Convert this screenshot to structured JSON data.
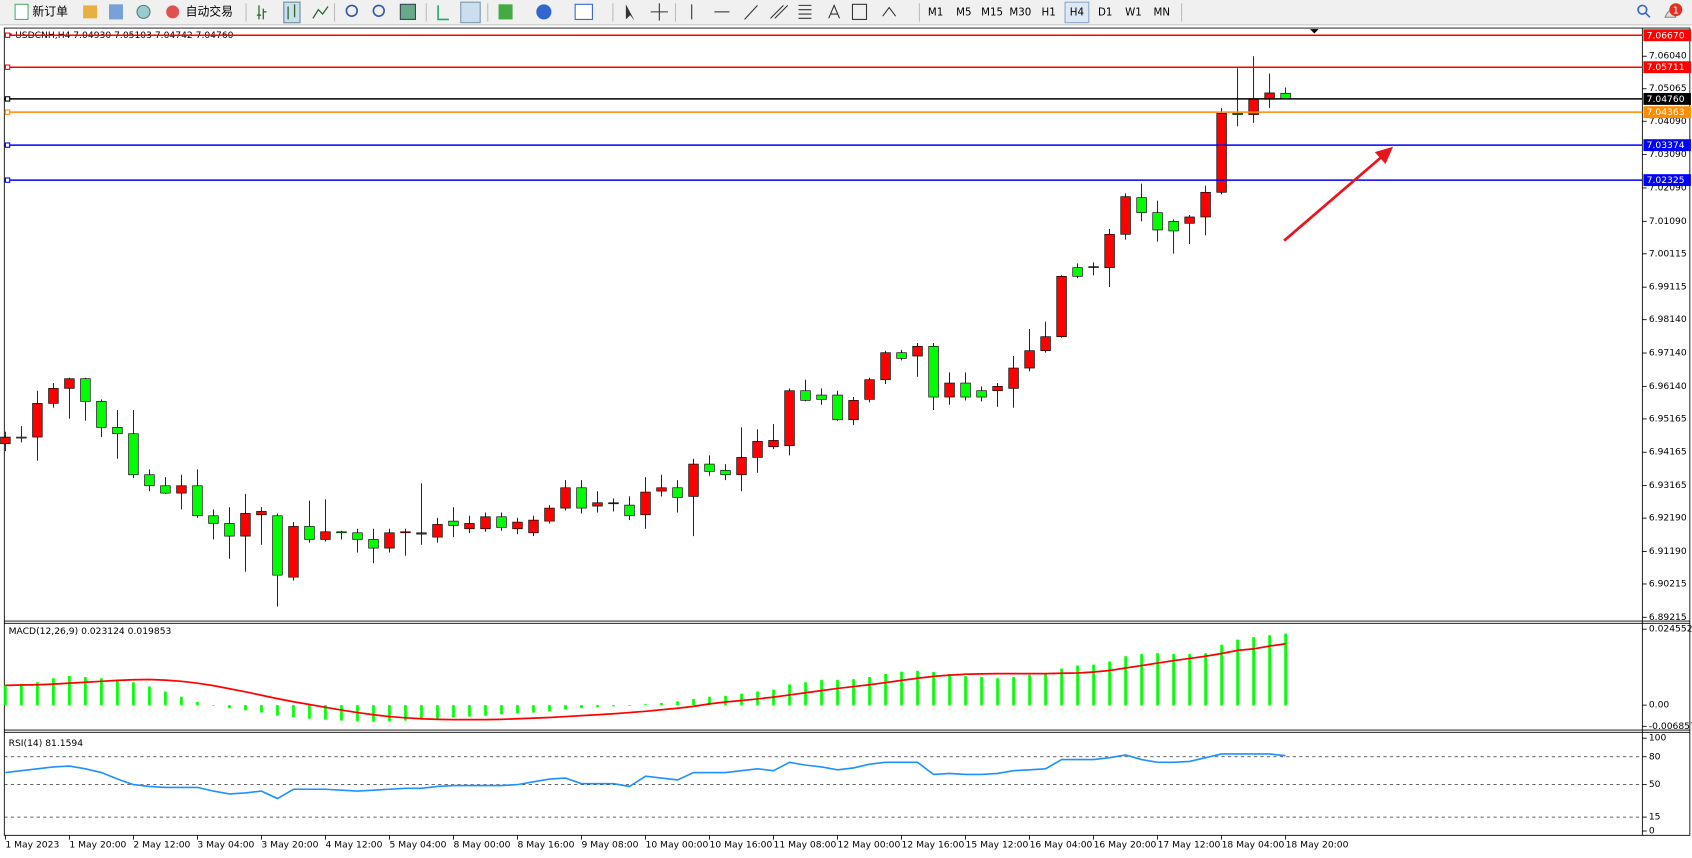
{
  "toolbar": {
    "new_order": "新订单",
    "auto_trading": "自动交易",
    "timeframes": [
      "M1",
      "M5",
      "M15",
      "M30",
      "H1",
      "H4",
      "D1",
      "W1",
      "MN"
    ],
    "active_timeframe": "H4",
    "notification_count": 1
  },
  "chart_data": [
    {
      "type": "candlestick",
      "title": "USDCNH,H4  7.04930 7.05103 7.04742 7.04760",
      "categories": [
        "1 May 2023",
        null,
        null,
        null,
        "1 May 20:00",
        null,
        null,
        null,
        "2 May 12:00",
        null,
        null,
        null,
        "3 May 04:00",
        null,
        null,
        null,
        "3 May 20:00",
        null,
        null,
        null,
        "4 May 12:00",
        null,
        null,
        null,
        "5 May 04:00",
        null,
        null,
        null,
        "8 May 00:00",
        null,
        null,
        null,
        "8 May 16:00",
        null,
        null,
        null,
        "9 May 08:00",
        null,
        null,
        null,
        "10 May 00:00",
        null,
        null,
        null,
        "10 May 16:00",
        null,
        null,
        null,
        "11 May 08:00",
        null,
        null,
        null,
        "12 May 00:00",
        null,
        null,
        null,
        "12 May 16:00",
        null,
        null,
        null,
        "15 May 12:00",
        null,
        null,
        null,
        "16 May 04:00",
        null,
        null,
        null,
        "16 May 20:00",
        null,
        null,
        null,
        "17 May 12:00",
        null,
        null,
        null,
        "18 May 04:00",
        null,
        null,
        null,
        "18 May 20:00"
      ],
      "open": [
        6.9442,
        6.9462,
        6.9462,
        6.9563,
        6.9608,
        6.9637,
        6.9569,
        6.9491,
        6.9472,
        6.9349,
        6.9316,
        6.9294,
        6.9316,
        6.9226,
        6.9203,
        6.9165,
        6.9229,
        6.9226,
        6.9042,
        6.9194,
        6.9155,
        6.9178,
        6.9175,
        6.9155,
        6.9129,
        6.9175,
        6.9171,
        6.9162,
        6.921,
        6.9187,
        6.9187,
        6.9223,
        6.9187,
        6.9175,
        6.921,
        6.9249,
        6.931,
        6.9255,
        6.9262,
        6.9258,
        6.9229,
        6.93,
        6.931,
        6.9284,
        6.9381,
        6.9362,
        6.9349,
        6.9401,
        6.9433,
        6.9436,
        6.9601,
        6.9588,
        6.9588,
        6.9514,
        6.9575,
        6.9634,
        6.9715,
        6.9705,
        6.9734,
        6.9582,
        6.9624,
        6.9601,
        6.9601,
        6.9608,
        6.9669,
        6.9721,
        6.9763,
        6.997,
        6.9973,
        6.997,
        7.007,
        7.018,
        7.0135,
        7.0109,
        7.0103,
        7.0122,
        7.0196,
        7.0433,
        7.0429,
        7.0475,
        7.0493
      ],
      "high": [
        6.9478,
        6.9495,
        6.9601,
        6.9624,
        6.964,
        6.964,
        6.9575,
        6.9543,
        6.9543,
        6.9365,
        6.9342,
        6.9349,
        6.9365,
        6.9245,
        6.9252,
        6.9291,
        6.9252,
        6.9233,
        6.9207,
        6.9271,
        6.9275,
        6.9181,
        6.9187,
        6.9187,
        6.9187,
        6.9187,
        6.9323,
        6.922,
        6.9252,
        6.9226,
        6.9236,
        6.9236,
        6.922,
        6.9226,
        6.9258,
        6.9333,
        6.9333,
        6.93,
        6.9278,
        6.9284,
        6.9342,
        6.9349,
        6.9333,
        6.9397,
        6.9407,
        6.9381,
        6.9491,
        6.9485,
        6.9501,
        6.9608,
        6.9634,
        6.9608,
        6.9601,
        6.9582,
        6.964,
        6.9721,
        6.9724,
        6.9744,
        6.9744,
        6.9656,
        6.9656,
        6.9614,
        6.9624,
        6.9705,
        6.9786,
        6.9808,
        6.9947,
        6.9983,
        6.9986,
        7.0086,
        7.0193,
        7.0222,
        7.0171,
        7.0115,
        7.0128,
        7.0216,
        7.0449,
        7.0568,
        7.0604,
        7.0552,
        7.05103
      ],
      "low": [
        6.942,
        6.9446,
        6.9391,
        6.955,
        6.9517,
        6.9511,
        6.9462,
        6.9397,
        6.9339,
        6.93,
        6.9291,
        6.9245,
        6.922,
        6.9155,
        6.9097,
        6.9058,
        6.9139,
        6.8954,
        6.9032,
        6.9145,
        6.9149,
        6.9155,
        6.9116,
        6.9084,
        6.9116,
        6.9106,
        6.9139,
        6.9145,
        6.9162,
        6.9174,
        6.9178,
        6.9181,
        6.9171,
        6.9165,
        6.9203,
        6.9242,
        6.9233,
        6.9236,
        6.9239,
        6.9213,
        6.9187,
        6.9284,
        6.9236,
        6.9165,
        6.9346,
        6.9333,
        6.93,
        6.9355,
        6.9426,
        6.9407,
        6.9569,
        6.9559,
        6.9511,
        6.9498,
        6.9566,
        6.9621,
        6.9692,
        6.9643,
        6.9543,
        6.9559,
        6.9572,
        6.9569,
        6.9553,
        6.955,
        6.9659,
        6.9715,
        6.976,
        6.9938,
        6.9947,
        6.9912,
        7.0054,
        7.0109,
        7.0048,
        7.0012,
        7.0041,
        7.0067,
        7.019,
        7.0394,
        7.0404,
        7.0449,
        7.04742
      ],
      "close": [
        6.9462,
        6.9459,
        6.9563,
        6.9608,
        6.9637,
        6.9569,
        6.9491,
        6.9472,
        6.9349,
        6.9316,
        6.9294,
        6.9316,
        6.9226,
        6.9203,
        6.9165,
        6.9233,
        6.9239,
        6.9048,
        6.9194,
        6.9155,
        6.9178,
        6.9175,
        6.9155,
        6.9129,
        6.9175,
        6.9178,
        6.9175,
        6.92,
        6.9197,
        6.9203,
        6.9223,
        6.9191,
        6.9207,
        6.9213,
        6.9249,
        6.931,
        6.9249,
        6.9265,
        6.9265,
        6.9226,
        6.9297,
        6.931,
        6.9281,
        6.9381,
        6.9359,
        6.9349,
        6.9401,
        6.9449,
        6.9452,
        6.9601,
        6.9572,
        6.9575,
        6.9514,
        6.9572,
        6.9634,
        6.9715,
        6.9698,
        6.9734,
        6.9582,
        6.9624,
        6.9582,
        6.9582,
        6.9614,
        6.9669,
        6.9721,
        6.9763,
        6.9944,
        6.9944,
        6.9973,
        7.007,
        7.0183,
        7.0135,
        7.0083,
        7.008,
        7.0122,
        7.0196,
        7.0433,
        7.0429,
        7.0475,
        7.0494,
        7.0476
      ],
      "up_color": "#ff0000",
      "down_color": "#00ff00",
      "ylim": [
        6.8915,
        7.0682
      ],
      "yticks": [
        {
          "value": 7.0604,
          "label": "7.06040"
        },
        7.05065,
        {
          "value": 7.0409,
          "label": "7.04090"
        },
        {
          "value": 7.0309,
          "label": "7.03090"
        },
        {
          "value": 7.0209,
          "label": "7.02090"
        },
        {
          "value": 7.0109,
          "label": "7.01090"
        },
        7.00115,
        6.99115,
        {
          "value": 6.9814,
          "label": "6.98140"
        },
        {
          "value": 6.9714,
          "label": "6.97140"
        },
        {
          "value": 6.9614,
          "label": "6.96140"
        },
        6.95165,
        6.94165,
        6.93165,
        {
          "value": 6.9219,
          "label": "6.92190"
        },
        {
          "value": 6.9119,
          "label": "6.91190"
        },
        6.90215,
        6.89215
      ],
      "hlines": [
        {
          "value": 7.0667,
          "label": "7.06670",
          "color": "#ff0000"
        },
        {
          "value": 7.05711,
          "label": "7.05711",
          "color": "#ff0000"
        },
        {
          "value": 7.04363,
          "label": "7.04363",
          "color": "#ff8c00"
        },
        {
          "value": 7.03374,
          "label": "7.03374",
          "color": "#0000ff"
        },
        {
          "value": 7.02325,
          "label": "7.02325",
          "color": "#0000ff"
        }
      ],
      "current_price": {
        "value": 7.0476,
        "label": "7.04760",
        "color": "#000000"
      }
    },
    {
      "type": "macd",
      "title": "MACD(12,26,9) 0.023124 0.019853",
      "histogram": {
        "color": "#00ff00",
        "values": [
          0.0064,
          0.0069,
          0.0074,
          0.0087,
          0.0094,
          0.0091,
          0.0087,
          0.0081,
          0.0074,
          0.006,
          0.0044,
          0.0027,
          0.001,
          -0.0002,
          -0.001,
          -0.0017,
          -0.0024,
          -0.0034,
          -0.004,
          -0.0044,
          -0.0047,
          -0.005,
          -0.0052,
          -0.0054,
          -0.0052,
          -0.005,
          -0.0047,
          -0.0044,
          -0.004,
          -0.0037,
          -0.0034,
          -0.003,
          -0.0027,
          -0.0024,
          -0.002,
          -0.0014,
          -0.001,
          -0.0007,
          -0.0004,
          -0.0002,
          0.0003,
          0.0007,
          0.0012,
          0.002,
          0.0027,
          0.003,
          0.0037,
          0.0044,
          0.005,
          0.0067,
          0.0074,
          0.0081,
          0.0081,
          0.0084,
          0.0091,
          0.0101,
          0.0108,
          0.0111,
          0.0107,
          0.0101,
          0.0094,
          0.0091,
          0.0087,
          0.0091,
          0.0098,
          0.0104,
          0.0118,
          0.0128,
          0.0131,
          0.0141,
          0.0158,
          0.0165,
          0.0168,
          0.0165,
          0.0165,
          0.0168,
          0.0195,
          0.0212,
          0.022,
          0.0226,
          0.023124
        ]
      },
      "signal": {
        "color": "#ff0000",
        "values": [
          0.0064,
          0.0065,
          0.0066,
          0.0068,
          0.0071,
          0.0074,
          0.0077,
          0.008,
          0.0082,
          0.0083,
          0.0081,
          0.0077,
          0.0071,
          0.0063,
          0.0053,
          0.0043,
          0.0032,
          0.0021,
          0.0011,
          0.0002,
          -0.0007,
          -0.0016,
          -0.0024,
          -0.0031,
          -0.0037,
          -0.0041,
          -0.0044,
          -0.0046,
          -0.0047,
          -0.0047,
          -0.0047,
          -0.0046,
          -0.0044,
          -0.0042,
          -0.004,
          -0.0037,
          -0.0034,
          -0.0031,
          -0.0028,
          -0.0024,
          -0.002,
          -0.0015,
          -0.001,
          -0.0004,
          0.0004,
          0.001,
          0.0015,
          0.002,
          0.0026,
          0.0033,
          0.004,
          0.0047,
          0.0054,
          0.006,
          0.0066,
          0.0073,
          0.008,
          0.0087,
          0.0093,
          0.0097,
          0.01,
          0.0101,
          0.0102,
          0.0102,
          0.0102,
          0.0102,
          0.0103,
          0.0104,
          0.0107,
          0.0112,
          0.012,
          0.0128,
          0.0136,
          0.0144,
          0.0151,
          0.0158,
          0.0167,
          0.0177,
          0.0182,
          0.0191,
          0.019853
        ]
      },
      "ylim": [
        -0.006857,
        0.024552
      ],
      "yticks": [
        0.024552,
        {
          "value": 0,
          "label": "0.00"
        },
        -0.006857
      ]
    },
    {
      "type": "line",
      "title": "RSI(14) 81.1594",
      "color": "#1e90ff",
      "values": [
        63,
        65,
        67,
        69,
        70,
        67,
        63,
        56,
        50,
        48,
        47,
        47,
        47,
        43,
        40,
        41,
        43,
        35,
        45,
        45,
        45,
        44,
        43,
        44,
        45,
        46,
        46,
        48,
        49,
        49,
        49,
        49,
        50,
        53,
        56,
        57,
        51,
        51,
        51,
        48,
        59,
        57,
        55,
        63,
        63,
        63,
        65,
        67,
        65,
        74,
        71,
        69,
        66,
        68,
        72,
        74,
        74,
        74,
        61,
        62,
        61,
        61,
        62,
        65,
        66,
        67,
        77,
        77,
        77,
        79,
        82,
        77,
        74,
        74,
        75,
        79,
        83,
        83,
        83,
        83,
        81.1594
      ],
      "ylim": [
        0,
        100
      ],
      "yticks": [
        100,
        80,
        50,
        15,
        0
      ],
      "levels": [
        80,
        50,
        15
      ]
    }
  ]
}
